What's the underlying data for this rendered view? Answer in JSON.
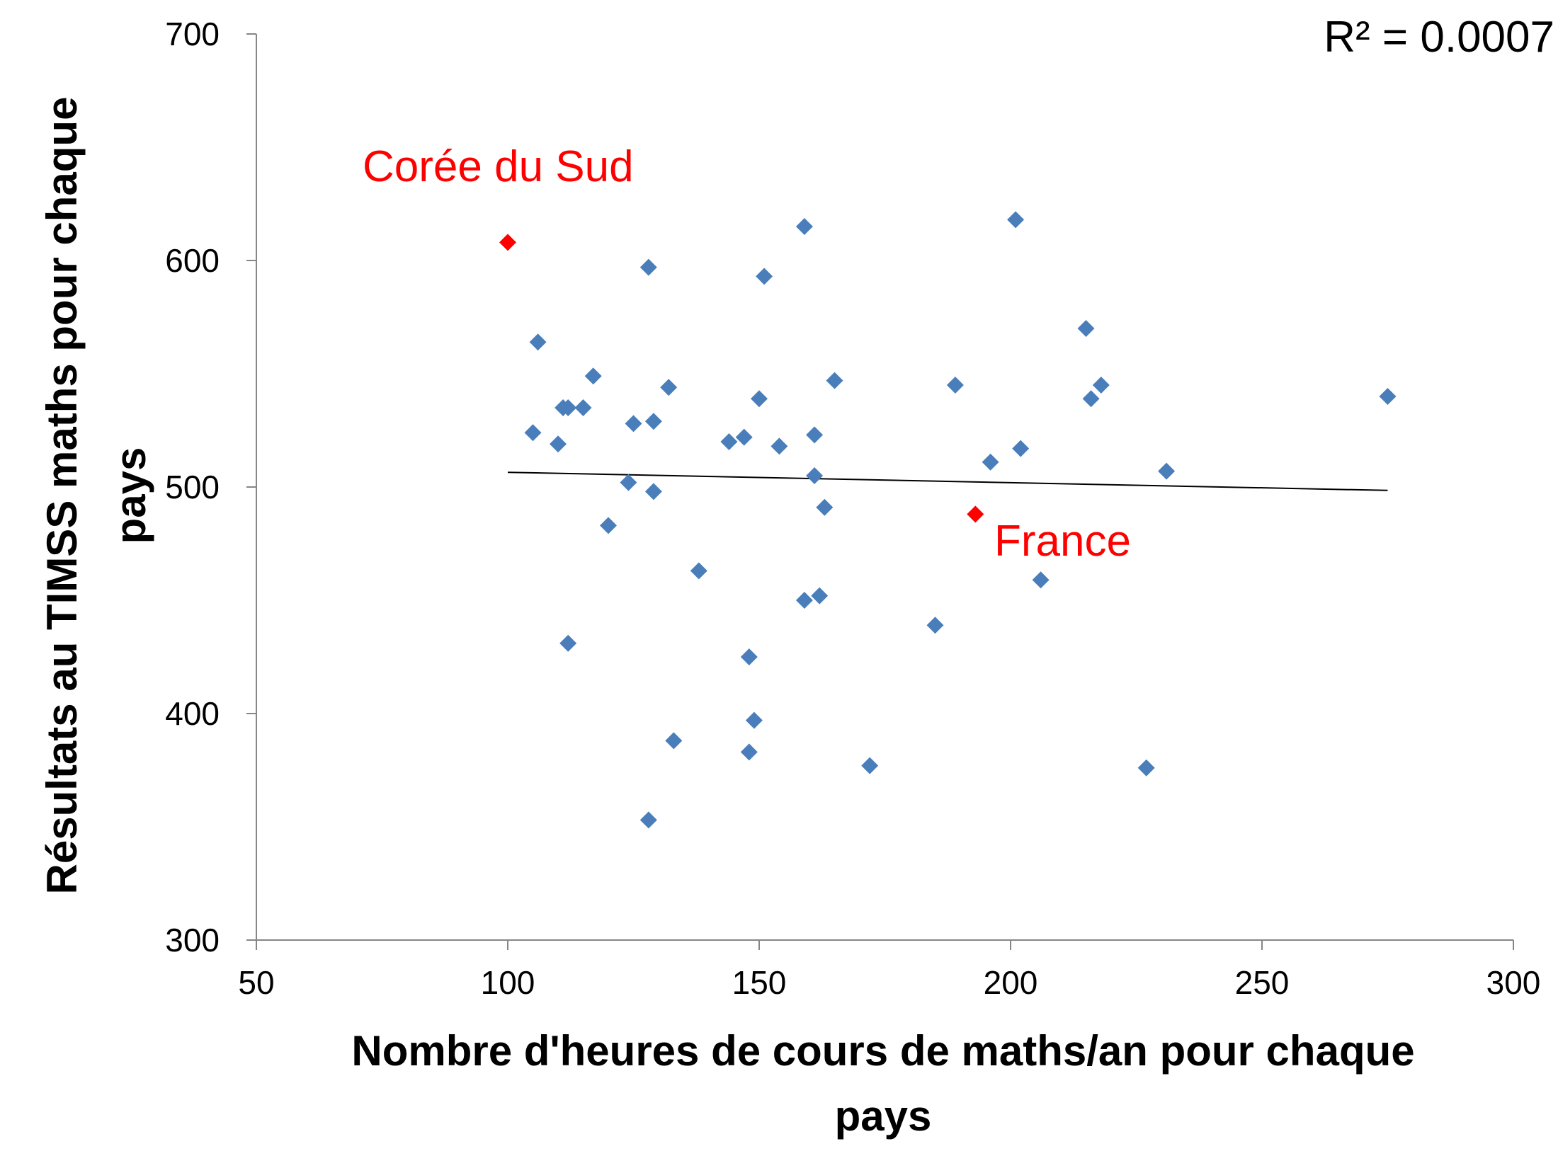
{
  "chart_data": {
    "type": "scatter",
    "title": "",
    "xlabel_lines": [
      "Nombre d'heures de cours de maths/an pour chaque",
      "pays"
    ],
    "ylabel_lines": [
      "Résultats au TIMSS maths pour chaque",
      "pays"
    ],
    "xlim": [
      50,
      300
    ],
    "ylim": [
      300,
      700
    ],
    "x_ticks": [
      50,
      100,
      150,
      200,
      250,
      300
    ],
    "y_ticks": [
      300,
      400,
      500,
      600,
      700
    ],
    "grid": false,
    "r_squared_label": "R² = 0.0007",
    "trendline": {
      "x": [
        100,
        275
      ],
      "y": [
        506.5,
        498.5
      ],
      "color": "#000000"
    },
    "series": [
      {
        "color": "#4a7ebb",
        "points": [
          [
            106,
            564
          ],
          [
            105,
            524
          ],
          [
            110,
            519
          ],
          [
            111,
            535
          ],
          [
            112,
            535
          ],
          [
            115,
            535
          ],
          [
            117,
            549
          ],
          [
            112,
            431
          ],
          [
            120,
            483
          ],
          [
            124,
            502
          ],
          [
            125,
            528
          ],
          [
            128,
            597
          ],
          [
            129,
            529
          ],
          [
            129,
            498
          ],
          [
            128,
            353
          ],
          [
            132,
            544
          ],
          [
            133,
            388
          ],
          [
            138,
            463
          ],
          [
            144,
            520
          ],
          [
            147,
            522
          ],
          [
            148,
            425
          ],
          [
            149,
            397
          ],
          [
            148,
            383
          ],
          [
            150,
            539
          ],
          [
            151,
            593
          ],
          [
            154,
            518
          ],
          [
            159,
            615
          ],
          [
            159,
            450
          ],
          [
            161,
            523
          ],
          [
            161,
            505
          ],
          [
            162,
            452
          ],
          [
            163,
            491
          ],
          [
            165,
            547
          ],
          [
            172,
            377
          ],
          [
            185,
            439
          ],
          [
            189,
            545
          ],
          [
            196,
            511
          ],
          [
            201,
            618
          ],
          [
            202,
            517
          ],
          [
            206,
            459
          ],
          [
            215,
            570
          ],
          [
            216,
            539
          ],
          [
            218,
            545
          ],
          [
            227,
            376
          ],
          [
            231,
            507
          ],
          [
            275,
            540
          ]
        ]
      },
      {
        "color": "#ff0000",
        "points": [
          [
            100,
            608
          ],
          [
            193,
            488
          ]
        ]
      }
    ],
    "annotations": [
      {
        "text": "Corée du Sud",
        "color": "#ff0000"
      },
      {
        "text": "France",
        "color": "#ff0000"
      }
    ]
  }
}
